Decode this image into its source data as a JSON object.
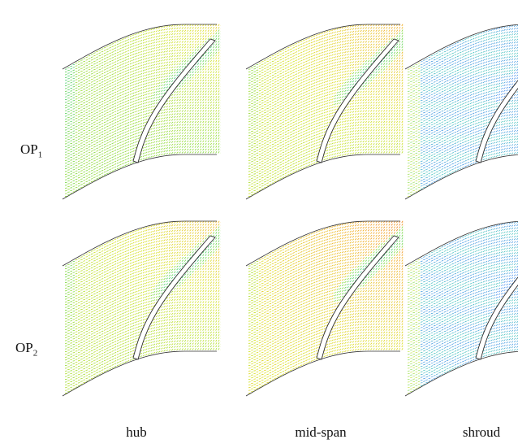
{
  "rows": [
    {
      "label_main": "OP",
      "label_sub": "1"
    },
    {
      "label_main": "OP",
      "label_sub": "2"
    }
  ],
  "columns": [
    {
      "label": "hub"
    },
    {
      "label": "mid-span"
    },
    {
      "label": "shroud"
    }
  ],
  "panels": [
    {
      "row": 0,
      "col": "hub",
      "colormap": [
        "#1a5bff",
        "#20c8a0",
        "#7fd83a",
        "#d8e21e",
        "#f3a51c",
        "#e2431a"
      ]
    },
    {
      "row": 0,
      "col": "mid-span",
      "colormap": [
        "#1a5bff",
        "#20c8a0",
        "#7fd83a",
        "#d8e21e",
        "#f3a51c",
        "#e2431a"
      ]
    },
    {
      "row": 0,
      "col": "shroud",
      "colormap": [
        "#1a5bff",
        "#20c8a0",
        "#7fd83a",
        "#d8e21e",
        "#f3a51c",
        "#e2431a"
      ]
    },
    {
      "row": 1,
      "col": "hub",
      "colormap": [
        "#1a5bff",
        "#20c8a0",
        "#7fd83a",
        "#d8e21e",
        "#f3a51c",
        "#e2431a"
      ]
    },
    {
      "row": 1,
      "col": "mid-span",
      "colormap": [
        "#1a5bff",
        "#20c8a0",
        "#7fd83a",
        "#d8e21e",
        "#f3a51c",
        "#e2431a"
      ]
    },
    {
      "row": 1,
      "col": "shroud",
      "colormap": [
        "#1a5bff",
        "#20c8a0",
        "#7fd83a",
        "#d8e21e",
        "#f3a51c",
        "#e2431a"
      ]
    }
  ]
}
